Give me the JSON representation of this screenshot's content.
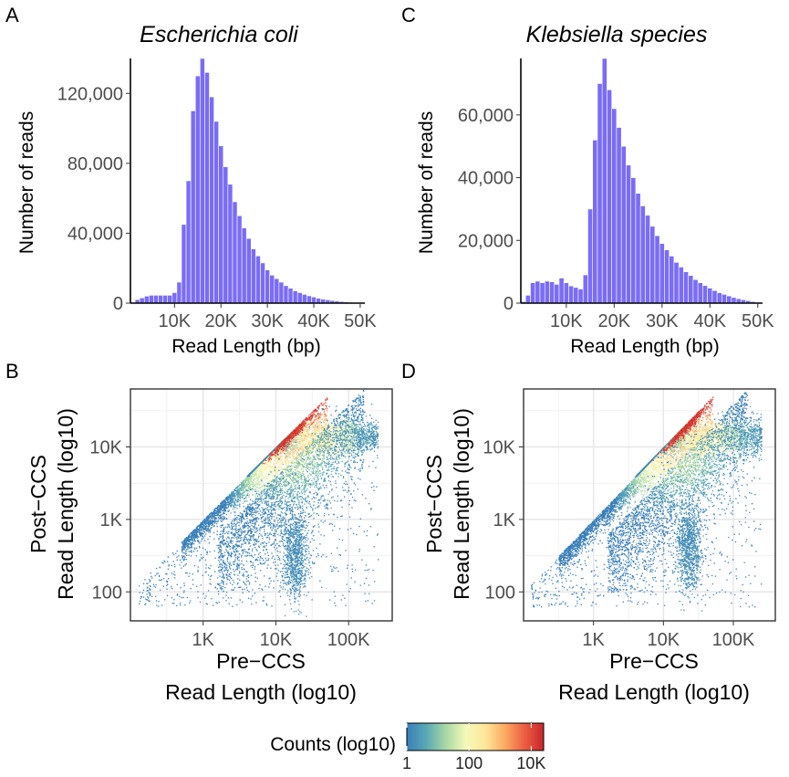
{
  "colors": {
    "bar_fill": "#7b6cf6",
    "bar_edge": "#ffffff",
    "grid": "#e6e6e6",
    "axis": "#000000",
    "tick_text": "#4d4d4d",
    "scatter_low": "#4393c3",
    "scale": [
      "#3a7fb8",
      "#5aa8b5",
      "#a9d8a5",
      "#f3f9b8",
      "#fee79b",
      "#fcab63",
      "#ec5f43",
      "#c9252b"
    ]
  },
  "chart_data": [
    {
      "type": "bar",
      "panel_label": "A",
      "title": "Escherichia coli",
      "xlabel": "Read Length (bp)",
      "ylabel": "Number of reads",
      "bin_width": 1000,
      "bin_start": 1000,
      "xlim": [
        500,
        51000
      ],
      "ylim": [
        0,
        140000
      ],
      "x_ticks": [
        10000,
        20000,
        30000,
        40000,
        50000
      ],
      "x_tick_labels": [
        "10K",
        "20K",
        "30K",
        "40K",
        "50K"
      ],
      "y_ticks": [
        0,
        40000,
        80000,
        120000
      ],
      "y_tick_labels": [
        "0",
        "40,000",
        "80,000",
        "120,000"
      ],
      "values": [
        500,
        2000,
        3000,
        4000,
        4500,
        4500,
        4500,
        4500,
        4500,
        6000,
        12000,
        45000,
        70000,
        110000,
        130000,
        140000,
        132000,
        118000,
        104000,
        90000,
        78000,
        68000,
        58000,
        50000,
        43000,
        37000,
        31000,
        27000,
        23000,
        19000,
        16000,
        14000,
        12000,
        10000,
        8500,
        7000,
        6000,
        5000,
        4200,
        3500,
        2800,
        2300,
        1900,
        1500,
        1200,
        900,
        700,
        500,
        350,
        200
      ]
    },
    {
      "type": "bar",
      "panel_label": "C",
      "title": "Klebsiella species",
      "xlabel": "Read Length (bp)",
      "ylabel": "Number of reads",
      "bin_width": 1000,
      "bin_start": 1000,
      "xlim": [
        500,
        51000
      ],
      "ylim": [
        0,
        78000
      ],
      "x_ticks": [
        10000,
        20000,
        30000,
        40000,
        50000
      ],
      "x_tick_labels": [
        "10K",
        "20K",
        "30K",
        "40K",
        "50K"
      ],
      "y_ticks": [
        0,
        20000,
        40000,
        60000
      ],
      "y_tick_labels": [
        "0",
        "20,000",
        "40,000",
        "60,000"
      ],
      "values": [
        500,
        2500,
        6500,
        7000,
        6500,
        7000,
        6800,
        6000,
        8000,
        6500,
        5500,
        5000,
        4500,
        9000,
        30000,
        52000,
        70000,
        78000,
        68000,
        62000,
        56000,
        50000,
        44000,
        40000,
        35000,
        31000,
        28000,
        24500,
        21500,
        19000,
        17000,
        15000,
        13000,
        11500,
        10000,
        8800,
        7500,
        6500,
        5600,
        4800,
        4000,
        3300,
        2800,
        2300,
        1800,
        1400,
        1100,
        800,
        500,
        300
      ]
    },
    {
      "type": "heatmap",
      "panel_label": "B",
      "xlabel": [
        "Pre−CCS",
        "Read Length (log10)"
      ],
      "ylabel": [
        "Post−CCS",
        "Read Length (log10)"
      ],
      "xlim_log10": [
        2.0,
        5.6
      ],
      "ylim_log10": [
        1.6,
        4.8
      ],
      "x_ticks_log10": [
        3,
        4,
        5
      ],
      "x_tick_labels": [
        "1K",
        "10K",
        "100K"
      ],
      "y_ticks_log10": [
        2,
        3,
        4
      ],
      "y_tick_labels": [
        "100",
        "1K",
        "10K"
      ],
      "ridge_start_log10": 3.0,
      "ridge_end_log10": 4.7,
      "plateau_log10": 4.15,
      "hotspot_log10": [
        4.2,
        4.2
      ],
      "lower_cluster_log10": [
        4.25,
        2.3
      ],
      "diagonal_start_log10": 2.7
    },
    {
      "type": "heatmap",
      "panel_label": "D",
      "xlabel": [
        "Pre−CCS",
        "Read Length (log10)"
      ],
      "ylabel": [
        "Post−CCS",
        "Read Length (log10)"
      ],
      "xlim_log10": [
        2.0,
        5.6
      ],
      "ylim_log10": [
        1.6,
        4.8
      ],
      "x_ticks_log10": [
        3,
        4,
        5
      ],
      "x_tick_labels": [
        "1K",
        "10K",
        "100K"
      ],
      "y_ticks_log10": [
        2,
        3,
        4
      ],
      "y_tick_labels": [
        "100",
        "1K",
        "10K"
      ],
      "ridge_start_log10": 2.8,
      "ridge_end_log10": 4.7,
      "plateau_log10": 4.15,
      "hotspot_log10": [
        4.3,
        4.3
      ],
      "lower_cluster_log10": [
        4.35,
        2.4
      ],
      "diagonal_start_log10": 2.5
    }
  ],
  "legend": {
    "title": "Counts (log10)",
    "tick_labels": [
      "1",
      "100",
      "10K"
    ],
    "tick_positions_log10": [
      0,
      2,
      4
    ],
    "range_log10": [
      0,
      4.4
    ]
  }
}
